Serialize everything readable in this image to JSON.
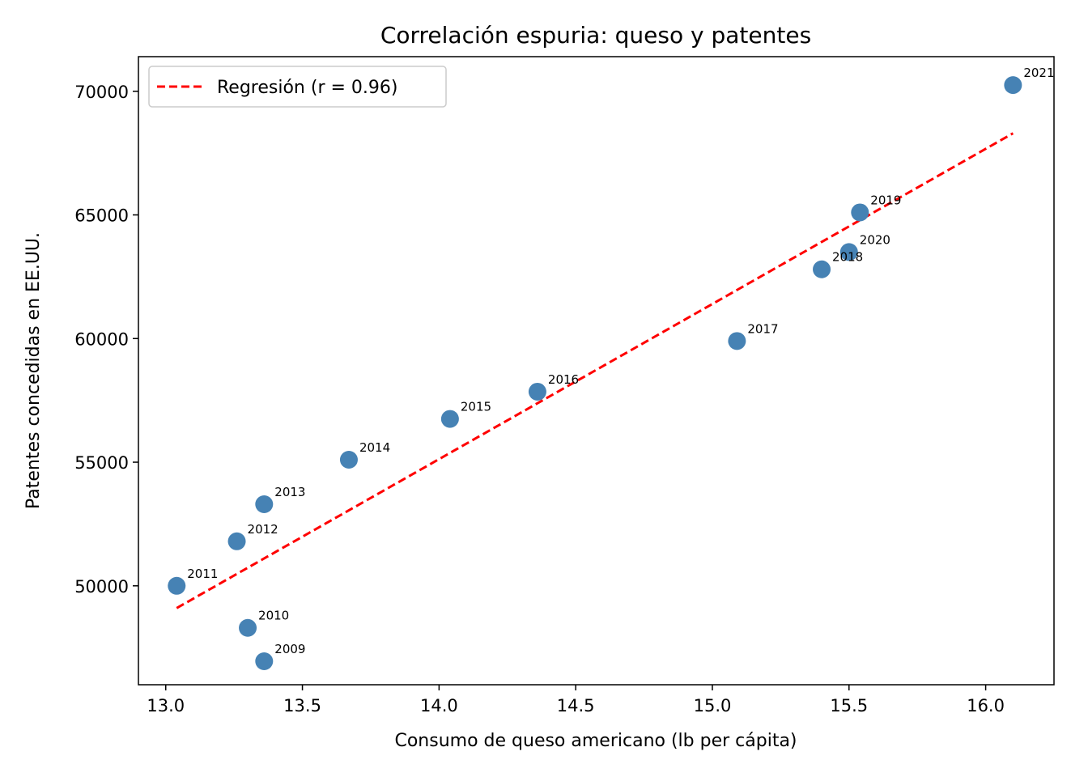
{
  "chart_data": {
    "type": "scatter",
    "title": "Correlación espuria: queso y patentes",
    "xlabel": "Consumo de queso americano (lb per cápita)",
    "ylabel": "Patentes concedidas en EE.UU.",
    "xlim": [
      12.9,
      16.25
    ],
    "ylim": [
      46000,
      71400
    ],
    "xticks": [
      13.0,
      13.5,
      14.0,
      14.5,
      15.0,
      15.5,
      16.0
    ],
    "xtick_labels": [
      "13.0",
      "13.5",
      "14.0",
      "14.5",
      "15.0",
      "15.5",
      "16.0"
    ],
    "yticks": [
      50000,
      55000,
      60000,
      65000,
      70000
    ],
    "ytick_labels": [
      "50000",
      "55000",
      "60000",
      "65000",
      "70000"
    ],
    "grid": false,
    "points": [
      {
        "label": "2009",
        "x": 13.36,
        "y": 46950
      },
      {
        "label": "2010",
        "x": 13.3,
        "y": 48300
      },
      {
        "label": "2011",
        "x": 13.04,
        "y": 50000
      },
      {
        "label": "2012",
        "x": 13.26,
        "y": 51800
      },
      {
        "label": "2013",
        "x": 13.36,
        "y": 53300
      },
      {
        "label": "2014",
        "x": 13.67,
        "y": 55100
      },
      {
        "label": "2015",
        "x": 14.04,
        "y": 56750
      },
      {
        "label": "2016",
        "x": 14.36,
        "y": 57850
      },
      {
        "label": "2017",
        "x": 15.09,
        "y": 59900
      },
      {
        "label": "2018",
        "x": 15.4,
        "y": 62800
      },
      {
        "label": "2019",
        "x": 15.54,
        "y": 65100
      },
      {
        "label": "2020",
        "x": 15.5,
        "y": 63500
      },
      {
        "label": "2021",
        "x": 16.1,
        "y": 70250
      }
    ],
    "point_color": "#4682b4",
    "regression": {
      "label": "Regresión (r = 0.96)",
      "color": "#ff0000",
      "style": "dashed",
      "x": [
        13.04,
        16.1
      ],
      "y": [
        49100,
        68300
      ]
    },
    "legend_position": "top-left"
  }
}
